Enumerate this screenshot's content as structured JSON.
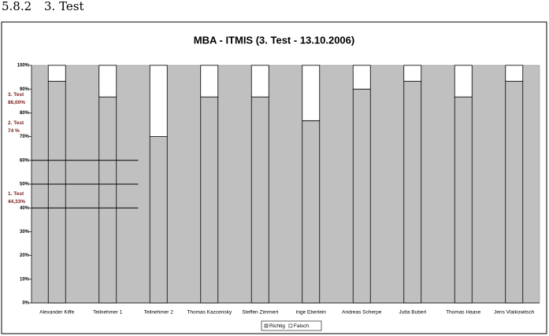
{
  "heading": {
    "number": "5.8.2",
    "title": "3. Test"
  },
  "chart_data": {
    "type": "stacked_bar",
    "title": "MBA - ITMIS (3. Test - 13.10.2006)",
    "categories": [
      "Alexander Kiffe",
      "Teilnehmer 1",
      "Teilnehmer 2",
      "Thomas Kazcensky",
      "Steffen Zimmert",
      "Inge Eberlein",
      "Andreas Scherpe",
      "Jutta Buberl",
      "Thomas Haase",
      "Jens Vlaikowitsch"
    ],
    "series": [
      {
        "name": "Richtig",
        "color": "#c0c0c0",
        "values": [
          93.3,
          86.7,
          70,
          86.7,
          86.7,
          76.7,
          90,
          93.3,
          86.7,
          93.3
        ]
      },
      {
        "name": "Falsch",
        "color": "#ffffff",
        "values": [
          6.7,
          13.3,
          30,
          13.3,
          13.3,
          23.3,
          10,
          6.7,
          13.3,
          6.7
        ]
      }
    ],
    "ylim": [
      0,
      100
    ],
    "yticks": [
      {
        "value": 0,
        "label": "0%"
      },
      {
        "value": 10,
        "label": "10%"
      },
      {
        "value": 20,
        "label": "20%"
      },
      {
        "value": 30,
        "label": "30%"
      },
      {
        "value": 40,
        "label": "40%"
      },
      {
        "value": 50,
        "label": "50%"
      },
      {
        "value": 60,
        "label": "60%"
      },
      {
        "value": 70,
        "label": "70%"
      },
      {
        "value": 80,
        "label": "80%"
      },
      {
        "value": 90,
        "label": "90%"
      },
      {
        "value": 100,
        "label": "100%"
      }
    ],
    "reference_lines": [
      60,
      50,
      40
    ],
    "annotations": [
      {
        "lines": [
          "3. Test",
          "86,00%"
        ],
        "value": 86
      },
      {
        "lines": [
          "2. Test",
          "74 %"
        ],
        "value": 74
      },
      {
        "lines": [
          "1. Test",
          "44,33%"
        ],
        "value": 44.33
      }
    ],
    "plot_background": "#c0c0c0",
    "legend": "bottom"
  }
}
